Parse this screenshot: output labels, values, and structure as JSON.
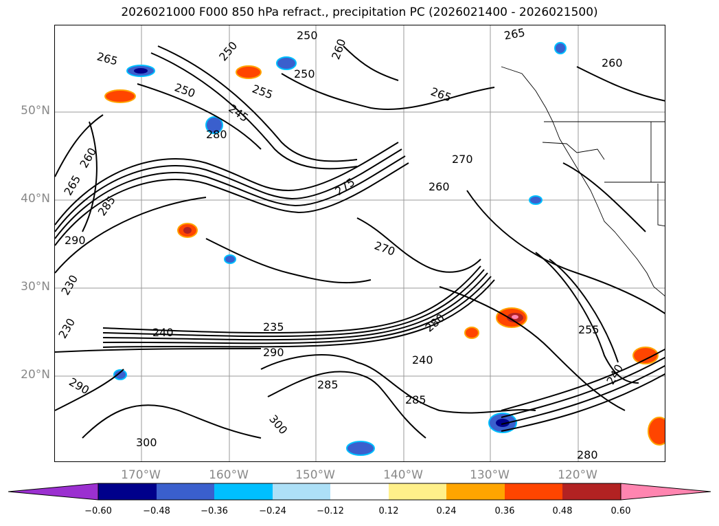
{
  "title": "2026021000 F000 850 hPa refract., precipitation PC (2026021400 - 2026021500)",
  "lat_labels": [
    "50°N",
    "40°N",
    "30°N",
    "20°N"
  ],
  "lon_labels": [
    "170°W",
    "160°W",
    "150°W",
    "140°W",
    "130°W",
    "120°W"
  ],
  "contour_labels": [
    "250",
    "260",
    "265",
    "255",
    "245",
    "250",
    "280",
    "270",
    "260",
    "285",
    "250",
    "265",
    "265",
    "260",
    "270",
    "275",
    "280",
    "285",
    "290",
    "230",
    "300",
    "230",
    "240",
    "235",
    "240",
    "260",
    "265",
    "255",
    "240",
    "250",
    "290",
    "285",
    "290",
    "280",
    "300",
    "280"
  ],
  "colorbar": {
    "ticks": [
      "−0.60",
      "−0.48",
      "−0.36",
      "−0.24",
      "−0.12",
      "0.12",
      "0.24",
      "0.36",
      "0.48",
      "0.60"
    ],
    "under_color": "#9b30d0",
    "over_color": "#ff85b0",
    "colors": [
      "#00008b",
      "#3a5fcd",
      "#00bfff",
      "#ade0f7",
      "#ffffff",
      "#fff08a",
      "#ffa500",
      "#ff4500",
      "#b22222"
    ]
  }
}
